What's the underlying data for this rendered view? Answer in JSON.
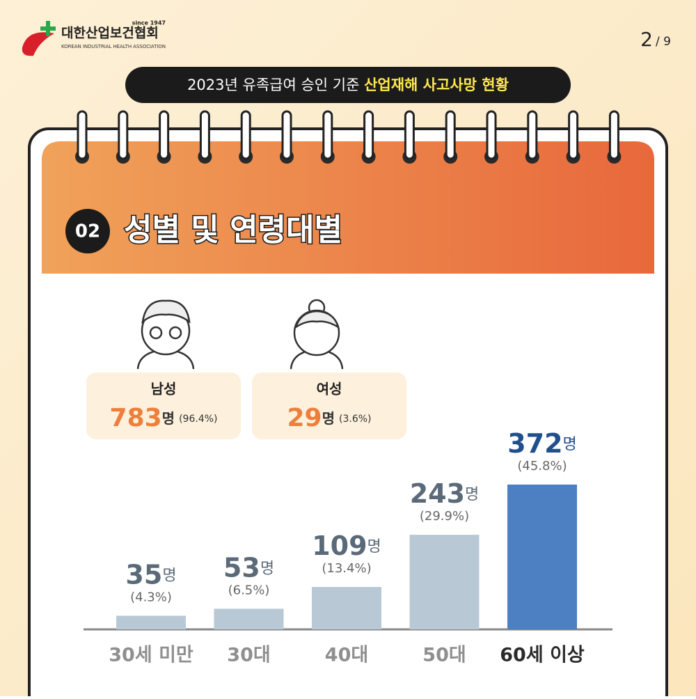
{
  "header": {
    "org_name": "대한산업보건협회",
    "since": "since 1947",
    "org_english": "KOREAN INDUSTRIAL HEALTH ASSOCIATION",
    "page": "2",
    "page_total": "/ 9"
  },
  "banner": {
    "text": "2023년 유족급여 승인 기준 ",
    "highlight": "산업재해 사고사망 현황"
  },
  "section": {
    "number": "02",
    "title": "성별 및 연령대별"
  },
  "gender": [
    {
      "label": "남성",
      "count": "783",
      "unit": "명",
      "share_label": "(96.4%)"
    },
    {
      "label": "여성",
      "count": "29",
      "unit": "명",
      "share_label": "(3.6%)"
    }
  ],
  "chart_data": {
    "type": "bar",
    "categories": [
      "30세 미만",
      "30대",
      "40대",
      "50대",
      "60세 이상"
    ],
    "values": [
      35,
      53,
      109,
      243,
      372
    ],
    "unit": "명",
    "shares": [
      4.3,
      6.5,
      13.4,
      29.9,
      45.8
    ],
    "share_labels": [
      "(4.3%)",
      "(6.5%)",
      "(13.4%)",
      "(29.9%)",
      "(45.8%)"
    ],
    "colors": [
      "#b8c9d5",
      "#b8c9d5",
      "#b8c9d5",
      "#b8c9d5",
      "#4d80c2"
    ],
    "label_colors": [
      "#5b6a78",
      "#5b6a78",
      "#5b6a78",
      "#5b6a78",
      "#1f4f8d"
    ],
    "category_colors": [
      "#8f8f8f",
      "#8f8f8f",
      "#8f8f8f",
      "#8f8f8f",
      "#2b2b2b"
    ]
  }
}
